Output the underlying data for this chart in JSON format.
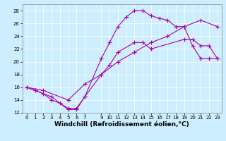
{
  "xlabel": "Windchill (Refroidissement éolien,°C)",
  "background_color": "#cceeff",
  "line_color": "#aa00aa",
  "xlim": [
    -0.5,
    23.5
  ],
  "ylim": [
    12,
    29
  ],
  "xticks": [
    0,
    1,
    2,
    3,
    4,
    5,
    6,
    7,
    9,
    10,
    11,
    12,
    13,
    14,
    15,
    16,
    17,
    18,
    19,
    20,
    21,
    22,
    23
  ],
  "yticks": [
    12,
    14,
    16,
    18,
    20,
    22,
    24,
    26,
    28
  ],
  "line1_x": [
    0,
    1,
    2,
    3,
    4,
    5,
    6,
    7,
    9,
    10,
    11,
    12,
    13,
    14,
    15,
    16,
    17,
    18,
    19,
    20,
    21,
    22,
    23
  ],
  "line1_y": [
    16.0,
    15.5,
    15.0,
    14.0,
    13.5,
    12.7,
    12.7,
    14.5,
    20.5,
    23.0,
    25.5,
    27.0,
    28.0,
    28.0,
    27.2,
    26.8,
    26.5,
    25.5,
    25.5,
    22.5,
    20.5,
    20.5,
    20.5
  ],
  "line2_x": [
    0,
    1,
    3,
    5,
    6,
    7,
    9,
    10,
    11,
    13,
    14,
    15,
    19,
    20,
    21,
    22,
    23
  ],
  "line2_y": [
    16.0,
    15.5,
    14.5,
    12.5,
    12.5,
    14.5,
    18.0,
    19.5,
    21.5,
    23.0,
    23.0,
    22.0,
    23.5,
    23.5,
    22.5,
    22.5,
    20.5
  ],
  "line3_x": [
    0,
    2,
    5,
    7,
    9,
    11,
    13,
    15,
    17,
    19,
    21,
    23
  ],
  "line3_y": [
    16.0,
    15.5,
    14.0,
    16.5,
    18.0,
    20.0,
    21.5,
    23.0,
    24.0,
    25.5,
    26.5,
    25.5
  ],
  "marker": "+",
  "markersize": 4,
  "markeredgewidth": 0.8,
  "linewidth": 0.8,
  "tick_fontsize": 5.0,
  "xlabel_fontsize": 6.5,
  "grid_color": "#ffffff",
  "grid_linewidth": 0.5
}
